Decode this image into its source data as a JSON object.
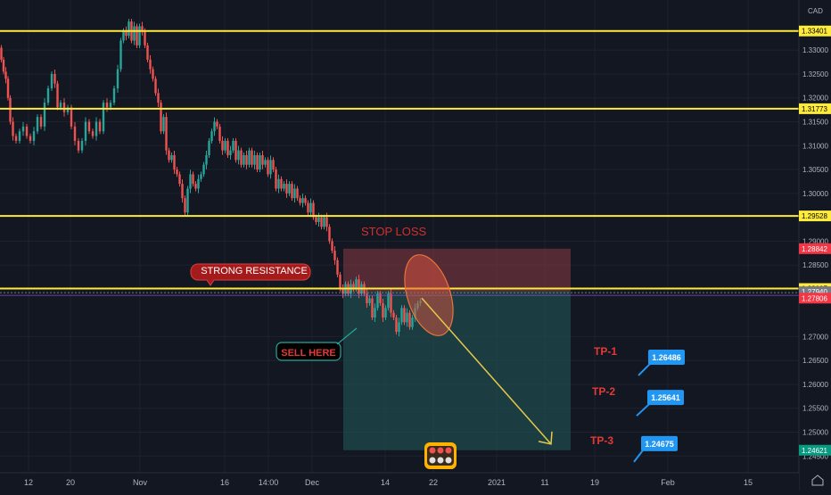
{
  "chart_data": {
    "type": "candlestick",
    "currency": "CAD",
    "y_ticks": [
      1.33,
      1.325,
      1.32,
      1.315,
      1.31,
      1.305,
      1.3,
      1.29,
      1.285,
      1.27,
      1.265,
      1.26,
      1.255,
      1.25,
      1.245
    ],
    "y_tick_labels": [
      "1.33000",
      "1.32500",
      "1.32000",
      "1.31500",
      "1.31000",
      "1.30500",
      "1.30000",
      "1.29000",
      "1.28500",
      "1.27000",
      "1.26500",
      "1.26000",
      "1.25500",
      "1.25000",
      "1.24500"
    ],
    "ylim": [
      1.2415,
      1.3405
    ],
    "x_tick_labels": [
      "12",
      "20",
      "Nov",
      "16",
      "14:00",
      "Dec",
      "14",
      "22",
      "2021",
      "11",
      "19",
      "Feb",
      "15"
    ],
    "horizontal_levels": [
      {
        "value": 1.33401,
        "label": "1.33401",
        "color": "#ffeb3b"
      },
      {
        "value": 1.31773,
        "label": "1.31773",
        "color": "#ffeb3b"
      },
      {
        "value": 1.29528,
        "label": "1.29528",
        "color": "#ffeb3b"
      },
      {
        "value": 1.28007,
        "label": "1.28007",
        "color": "#ffeb3b"
      }
    ],
    "price_tags": [
      {
        "value": 1.28842,
        "label": "1.28842",
        "color": "#f23645"
      },
      {
        "value": 1.2794,
        "label": "1.27940",
        "color": "#787b86"
      },
      {
        "value": 1.27806,
        "label": "1.27806",
        "color": "#f23645"
      },
      {
        "value": 1.24621,
        "label": "1.24621",
        "color": "#089981"
      }
    ],
    "short_position": {
      "entry": 1.2794,
      "stop": 1.28842,
      "target": 1.24621
    },
    "candles_path": [
      [
        0,
        1.3305
      ],
      [
        3,
        1.328
      ],
      [
        5,
        1.3255
      ],
      [
        8,
        1.324
      ],
      [
        10,
        1.32
      ],
      [
        13,
        1.315
      ],
      [
        16,
        1.312
      ],
      [
        20,
        1.311
      ],
      [
        24,
        1.313
      ],
      [
        28,
        1.314
      ],
      [
        32,
        1.312
      ],
      [
        36,
        1.311
      ],
      [
        40,
        1.313
      ],
      [
        44,
        1.316
      ],
      [
        48,
        1.314
      ],
      [
        52,
        1.319
      ],
      [
        56,
        1.322
      ],
      [
        60,
        1.325
      ],
      [
        63,
        1.323
      ],
      [
        66,
        1.318
      ],
      [
        70,
        1.319
      ],
      [
        74,
        1.317
      ],
      [
        78,
        1.318
      ],
      [
        82,
        1.314
      ],
      [
        86,
        1.311
      ],
      [
        90,
        1.309
      ],
      [
        94,
        1.311
      ],
      [
        98,
        1.315
      ],
      [
        102,
        1.313
      ],
      [
        106,
        1.312
      ],
      [
        110,
        1.315
      ],
      [
        114,
        1.313
      ],
      [
        118,
        1.319
      ],
      [
        122,
        1.318
      ],
      [
        126,
        1.319
      ],
      [
        130,
        1.322
      ],
      [
        134,
        1.326
      ],
      [
        137,
        1.332
      ],
      [
        140,
        1.334
      ],
      [
        143,
        1.333
      ],
      [
        146,
        1.336
      ],
      [
        149,
        1.332
      ],
      [
        152,
        1.335
      ],
      [
        155,
        1.331
      ],
      [
        158,
        1.335
      ],
      [
        161,
        1.334
      ],
      [
        164,
        1.331
      ],
      [
        167,
        1.328
      ],
      [
        170,
        1.326
      ],
      [
        173,
        1.324
      ],
      [
        176,
        1.321
      ],
      [
        179,
        1.319
      ],
      [
        182,
        1.313
      ],
      [
        185,
        1.316
      ],
      [
        188,
        1.309
      ],
      [
        191,
        1.307
      ],
      [
        194,
        1.308
      ],
      [
        197,
        1.305
      ],
      [
        200,
        1.304
      ],
      [
        203,
        1.302
      ],
      [
        206,
        1.299
      ],
      [
        209,
        1.296
      ],
      [
        212,
        1.301
      ],
      [
        215,
        1.304
      ],
      [
        218,
        1.302
      ],
      [
        221,
        1.301
      ],
      [
        224,
        1.303
      ],
      [
        227,
        1.304
      ],
      [
        230,
        1.306
      ],
      [
        233,
        1.308
      ],
      [
        236,
        1.311
      ],
      [
        239,
        1.313
      ],
      [
        242,
        1.315
      ],
      [
        245,
        1.314
      ],
      [
        248,
        1.311
      ],
      [
        251,
        1.309
      ],
      [
        254,
        1.311
      ],
      [
        257,
        1.308
      ],
      [
        260,
        1.309
      ],
      [
        263,
        1.311
      ],
      [
        266,
        1.307
      ],
      [
        269,
        1.309
      ],
      [
        272,
        1.306
      ],
      [
        275,
        1.308
      ],
      [
        278,
        1.306
      ],
      [
        281,
        1.309
      ],
      [
        284,
        1.306
      ],
      [
        287,
        1.308
      ],
      [
        290,
        1.305
      ],
      [
        293,
        1.308
      ],
      [
        296,
        1.306
      ],
      [
        299,
        1.307
      ],
      [
        302,
        1.304
      ],
      [
        305,
        1.307
      ],
      [
        308,
        1.305
      ],
      [
        311,
        1.301
      ],
      [
        314,
        1.303
      ],
      [
        317,
        1.301
      ],
      [
        320,
        1.302
      ],
      [
        323,
        1.3
      ],
      [
        326,
        1.302
      ],
      [
        329,
        1.299
      ],
      [
        332,
        1.301
      ],
      [
        335,
        1.299
      ],
      [
        338,
        1.298
      ],
      [
        341,
        1.299
      ],
      [
        344,
        1.298
      ],
      [
        347,
        1.296
      ],
      [
        350,
        1.298
      ],
      [
        353,
        1.295
      ],
      [
        356,
        1.294
      ],
      [
        359,
        1.295
      ],
      [
        362,
        1.293
      ],
      [
        365,
        1.295
      ],
      [
        368,
        1.293
      ],
      [
        371,
        1.29
      ],
      [
        374,
        1.288
      ],
      [
        377,
        1.286
      ],
      [
        380,
        1.283
      ],
      [
        383,
        1.28
      ],
      [
        386,
        1.279
      ],
      [
        389,
        1.281
      ],
      [
        392,
        1.279
      ],
      [
        395,
        1.281
      ],
      [
        398,
        1.28
      ],
      [
        401,
        1.282
      ],
      [
        404,
        1.279
      ],
      [
        407,
        1.281
      ],
      [
        410,
        1.279
      ],
      [
        413,
        1.277
      ],
      [
        416,
        1.278
      ],
      [
        419,
        1.274
      ],
      [
        422,
        1.276
      ],
      [
        425,
        1.279
      ],
      [
        428,
        1.277
      ],
      [
        431,
        1.274
      ],
      [
        434,
        1.276
      ],
      [
        437,
        1.279
      ],
      [
        440,
        1.275
      ],
      [
        443,
        1.274
      ],
      [
        446,
        1.271
      ],
      [
        449,
        1.273
      ],
      [
        452,
        1.276
      ],
      [
        455,
        1.273
      ],
      [
        458,
        1.275
      ],
      [
        461,
        1.272
      ],
      [
        464,
        1.274
      ],
      [
        467,
        1.276
      ],
      [
        470,
        1.277
      ],
      [
        473,
        1.2775
      ]
    ],
    "annotations": [
      "STOP LOSS",
      "STRONG RESISTANCE",
      "SELL HERE",
      "TP-1",
      "TP-2",
      "TP-3"
    ],
    "tp_labels": [
      {
        "name": "TP-1",
        "value": 1.26486,
        "label": "1.26486"
      },
      {
        "name": "TP-2",
        "value": 1.25641,
        "label": "1.25641"
      },
      {
        "name": "TP-3",
        "value": 1.24675,
        "label": "1.24675"
      }
    ],
    "arrow": {
      "from": 1.27806,
      "to": 1.2475
    },
    "grid": true
  },
  "colors": {
    "background": "#131722",
    "grid": "#1e222d",
    "up": "#26a69a",
    "down": "#ef5350",
    "level_line": "#ffeb3b",
    "stop_zone": "#8a3a45",
    "profit_zone": "#1f4f4f",
    "annotation_red": "#d32f2f",
    "label_blue": "#2196f3",
    "arrow": "#e6c84a"
  },
  "icons": {
    "logo_badge": "emoji-badge-icon",
    "home": "home-icon"
  }
}
